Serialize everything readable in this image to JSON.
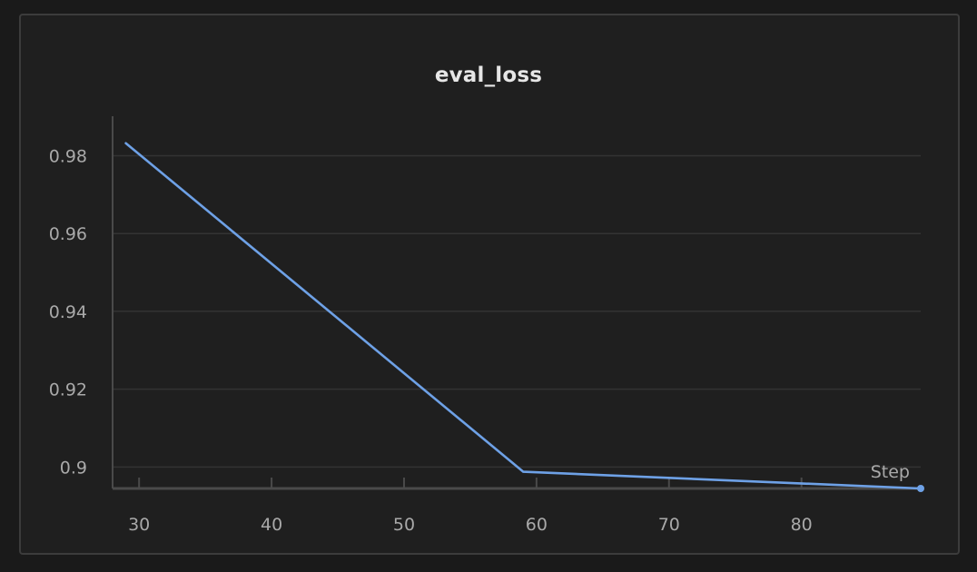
{
  "chart_data": {
    "type": "line",
    "title": "eval_loss",
    "xlabel": "Step",
    "ylabel": "",
    "x": [
      29,
      59,
      89
    ],
    "series": [
      {
        "values": [
          0.9832,
          0.8988,
          0.8945
        ]
      }
    ],
    "xlim": [
      28,
      89
    ],
    "ylim": [
      0.8945,
      0.992
    ],
    "xticks": [
      30,
      40,
      50,
      60,
      70,
      80
    ],
    "yticks": [
      0.9,
      0.92,
      0.94,
      0.96,
      0.98
    ],
    "ytick_labels": [
      "0.9",
      "0.92",
      "0.94",
      "0.96",
      "0.98"
    ],
    "grid": true,
    "legend": "none",
    "colors": {
      "line": "#6ea1e6",
      "grid": "#333333",
      "axis": "#4a4a4a",
      "background": "#1f1f1f"
    }
  }
}
